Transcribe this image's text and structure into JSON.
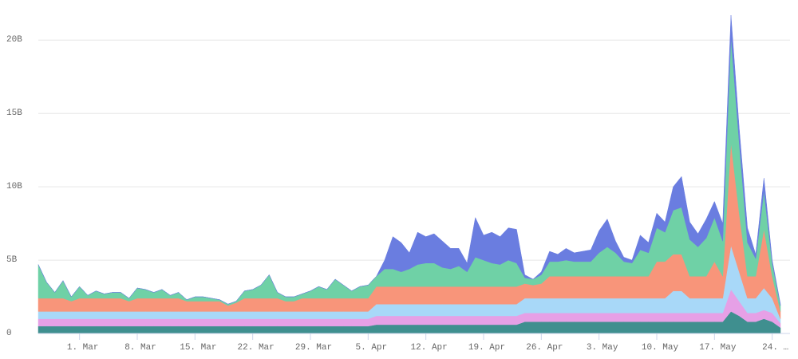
{
  "chart_data": {
    "type": "stacked_area",
    "categories": [
      null,
      null,
      null,
      null,
      null,
      "1. Mar",
      null,
      null,
      null,
      null,
      null,
      null,
      "8. Mar",
      null,
      null,
      null,
      null,
      null,
      null,
      "15. Mar",
      null,
      null,
      null,
      null,
      null,
      null,
      "22. Mar",
      null,
      null,
      null,
      null,
      null,
      null,
      "29. Mar",
      null,
      null,
      null,
      null,
      null,
      null,
      "5. Apr",
      null,
      null,
      null,
      null,
      null,
      null,
      "12. Apr",
      null,
      null,
      null,
      null,
      null,
      null,
      "19. Apr",
      null,
      null,
      null,
      null,
      null,
      null,
      "26. Apr",
      null,
      null,
      null,
      null,
      null,
      null,
      "3. May",
      null,
      null,
      null,
      null,
      null,
      null,
      "10. May",
      null,
      null,
      null,
      null,
      null,
      null,
      "17. May",
      null,
      null,
      null,
      null,
      null,
      null,
      "24. …",
      null
    ],
    "series": [
      {
        "color": "#3f8f8f",
        "values": [
          0.5,
          0.5,
          0.5,
          0.5,
          0.5,
          0.5,
          0.5,
          0.5,
          0.5,
          0.5,
          0.5,
          0.5,
          0.5,
          0.5,
          0.5,
          0.5,
          0.5,
          0.5,
          0.5,
          0.5,
          0.5,
          0.5,
          0.5,
          0.5,
          0.5,
          0.5,
          0.5,
          0.5,
          0.5,
          0.5,
          0.5,
          0.5,
          0.5,
          0.5,
          0.5,
          0.5,
          0.5,
          0.5,
          0.5,
          0.5,
          0.5,
          0.6,
          0.6,
          0.6,
          0.6,
          0.6,
          0.6,
          0.6,
          0.6,
          0.6,
          0.6,
          0.6,
          0.6,
          0.6,
          0.6,
          0.6,
          0.6,
          0.6,
          0.6,
          0.8,
          0.8,
          0.8,
          0.8,
          0.8,
          0.8,
          0.8,
          0.8,
          0.8,
          0.8,
          0.8,
          0.8,
          0.8,
          0.8,
          0.8,
          0.8,
          0.8,
          0.8,
          0.8,
          0.8,
          0.8,
          0.8,
          0.8,
          0.8,
          0.8,
          1.5,
          1.2,
          0.8,
          0.8,
          1.0,
          0.8,
          0.4
        ]
      },
      {
        "color": "#e6a0e6",
        "values": [
          0.5,
          0.5,
          0.5,
          0.5,
          0.5,
          0.5,
          0.5,
          0.5,
          0.5,
          0.5,
          0.5,
          0.5,
          0.5,
          0.5,
          0.5,
          0.5,
          0.5,
          0.5,
          0.5,
          0.5,
          0.5,
          0.5,
          0.5,
          0.5,
          0.5,
          0.5,
          0.5,
          0.5,
          0.5,
          0.5,
          0.5,
          0.5,
          0.5,
          0.5,
          0.5,
          0.5,
          0.5,
          0.5,
          0.5,
          0.5,
          0.5,
          0.6,
          0.6,
          0.6,
          0.6,
          0.6,
          0.6,
          0.6,
          0.6,
          0.6,
          0.6,
          0.6,
          0.6,
          0.6,
          0.6,
          0.6,
          0.6,
          0.6,
          0.6,
          0.6,
          0.6,
          0.6,
          0.6,
          0.6,
          0.6,
          0.6,
          0.6,
          0.6,
          0.6,
          0.6,
          0.6,
          0.6,
          0.6,
          0.6,
          0.6,
          0.6,
          0.6,
          0.6,
          0.6,
          0.6,
          0.6,
          0.6,
          0.6,
          0.6,
          1.5,
          1.0,
          0.6,
          0.6,
          0.6,
          0.6,
          0.3
        ]
      },
      {
        "color": "#a8d8f8",
        "values": [
          0.5,
          0.5,
          0.5,
          0.5,
          0.5,
          0.5,
          0.5,
          0.5,
          0.5,
          0.5,
          0.5,
          0.5,
          0.5,
          0.5,
          0.5,
          0.5,
          0.5,
          0.5,
          0.5,
          0.5,
          0.5,
          0.5,
          0.5,
          0.5,
          0.5,
          0.5,
          0.5,
          0.5,
          0.5,
          0.5,
          0.5,
          0.5,
          0.5,
          0.5,
          0.5,
          0.5,
          0.5,
          0.5,
          0.5,
          0.5,
          0.5,
          0.8,
          0.8,
          0.8,
          0.8,
          0.8,
          0.8,
          0.8,
          0.8,
          0.8,
          0.8,
          0.8,
          0.8,
          0.8,
          0.8,
          0.8,
          0.8,
          0.8,
          0.8,
          1.0,
          1.0,
          1.0,
          1.0,
          1.0,
          1.0,
          1.0,
          1.0,
          1.0,
          1.0,
          1.0,
          1.0,
          1.0,
          1.0,
          1.0,
          1.0,
          1.0,
          1.0,
          1.5,
          1.5,
          1.0,
          1.0,
          1.0,
          1.0,
          1.0,
          3.0,
          2.0,
          1.0,
          1.0,
          1.5,
          1.0,
          0.3
        ]
      },
      {
        "color": "#f8957a",
        "values": [
          0.9,
          0.9,
          0.9,
          0.9,
          0.7,
          0.9,
          0.9,
          0.9,
          0.9,
          0.9,
          0.9,
          0.7,
          0.9,
          0.9,
          0.9,
          0.9,
          0.9,
          0.9,
          0.7,
          0.7,
          0.7,
          0.7,
          0.7,
          0.4,
          0.6,
          0.9,
          0.9,
          0.9,
          0.9,
          0.9,
          0.7,
          0.7,
          0.9,
          0.9,
          0.9,
          0.9,
          0.9,
          0.9,
          0.9,
          0.9,
          0.9,
          1.2,
          1.2,
          1.2,
          1.2,
          1.2,
          1.2,
          1.2,
          1.2,
          1.2,
          1.2,
          1.2,
          1.2,
          1.2,
          1.2,
          1.2,
          1.2,
          1.2,
          1.2,
          1.0,
          0.9,
          1.0,
          1.5,
          1.5,
          1.5,
          1.5,
          1.5,
          1.5,
          1.5,
          1.5,
          1.5,
          1.5,
          1.5,
          1.5,
          1.5,
          2.5,
          2.5,
          2.5,
          2.5,
          1.5,
          1.5,
          1.5,
          2.5,
          1.5,
          7.0,
          4.0,
          1.5,
          1.5,
          4.0,
          1.5,
          0.5
        ]
      },
      {
        "color": "#6fd1a6",
        "values": [
          2.3,
          1.1,
          0.4,
          1.2,
          0.3,
          0.8,
          0.2,
          0.5,
          0.3,
          0.4,
          0.4,
          0.2,
          0.7,
          0.6,
          0.4,
          0.6,
          0.2,
          0.4,
          0.1,
          0.3,
          0.3,
          0.2,
          0.1,
          0.1,
          0.1,
          0.5,
          0.6,
          0.9,
          1.6,
          0.4,
          0.3,
          0.3,
          0.3,
          0.5,
          0.8,
          0.6,
          1.3,
          0.9,
          0.5,
          0.8,
          0.9,
          0.7,
          1.2,
          1.2,
          1.0,
          1.2,
          1.5,
          1.6,
          1.6,
          1.3,
          1.2,
          1.4,
          1.0,
          2.0,
          1.8,
          1.6,
          1.5,
          1.8,
          1.6,
          0.4,
          0.4,
          0.6,
          1.0,
          1.0,
          1.1,
          1.0,
          1.0,
          1.0,
          1.6,
          2.0,
          1.6,
          1.0,
          0.9,
          1.8,
          1.6,
          2.3,
          2.0,
          3.0,
          3.2,
          2.5,
          2.0,
          2.6,
          3.0,
          2.4,
          7.2,
          4.8,
          2.3,
          1.2,
          2.6,
          0.9,
          0.4
        ]
      },
      {
        "color": "#6a7de0",
        "values": [
          0,
          0,
          0,
          0,
          0,
          0,
          0,
          0,
          0,
          0,
          0,
          0,
          0,
          0,
          0,
          0,
          0,
          0,
          0,
          0,
          0,
          0,
          0,
          0,
          0,
          0,
          0,
          0,
          0,
          0,
          0,
          0,
          0,
          0,
          0,
          0,
          0,
          0,
          0,
          0,
          0,
          0,
          0.6,
          2.2,
          2.0,
          1.1,
          2.2,
          1.8,
          2.0,
          1.8,
          1.4,
          1.2,
          0.6,
          2.7,
          1.7,
          2.1,
          1.9,
          2.2,
          2.3,
          0.2,
          0,
          0.2,
          0.7,
          0.5,
          0.8,
          0.6,
          0.7,
          0.8,
          1.5,
          1.9,
          0.8,
          0.3,
          0.2,
          1.0,
          0.7,
          1.0,
          0.7,
          1.6,
          2.1,
          1.2,
          0.9,
          1.3,
          1.1,
          1.2,
          1.5,
          1.0,
          1.0,
          0.3,
          0.9,
          0.2,
          0.1
        ]
      }
    ],
    "ylim": [
      0,
      22.3
    ],
    "yticks": [
      0,
      {
        "value": 5,
        "label": "5B"
      },
      {
        "value": 10,
        "label": "10B"
      },
      {
        "value": 15,
        "label": "15B"
      },
      {
        "value": 20,
        "label": "20B"
      }
    ],
    "grid": true
  }
}
